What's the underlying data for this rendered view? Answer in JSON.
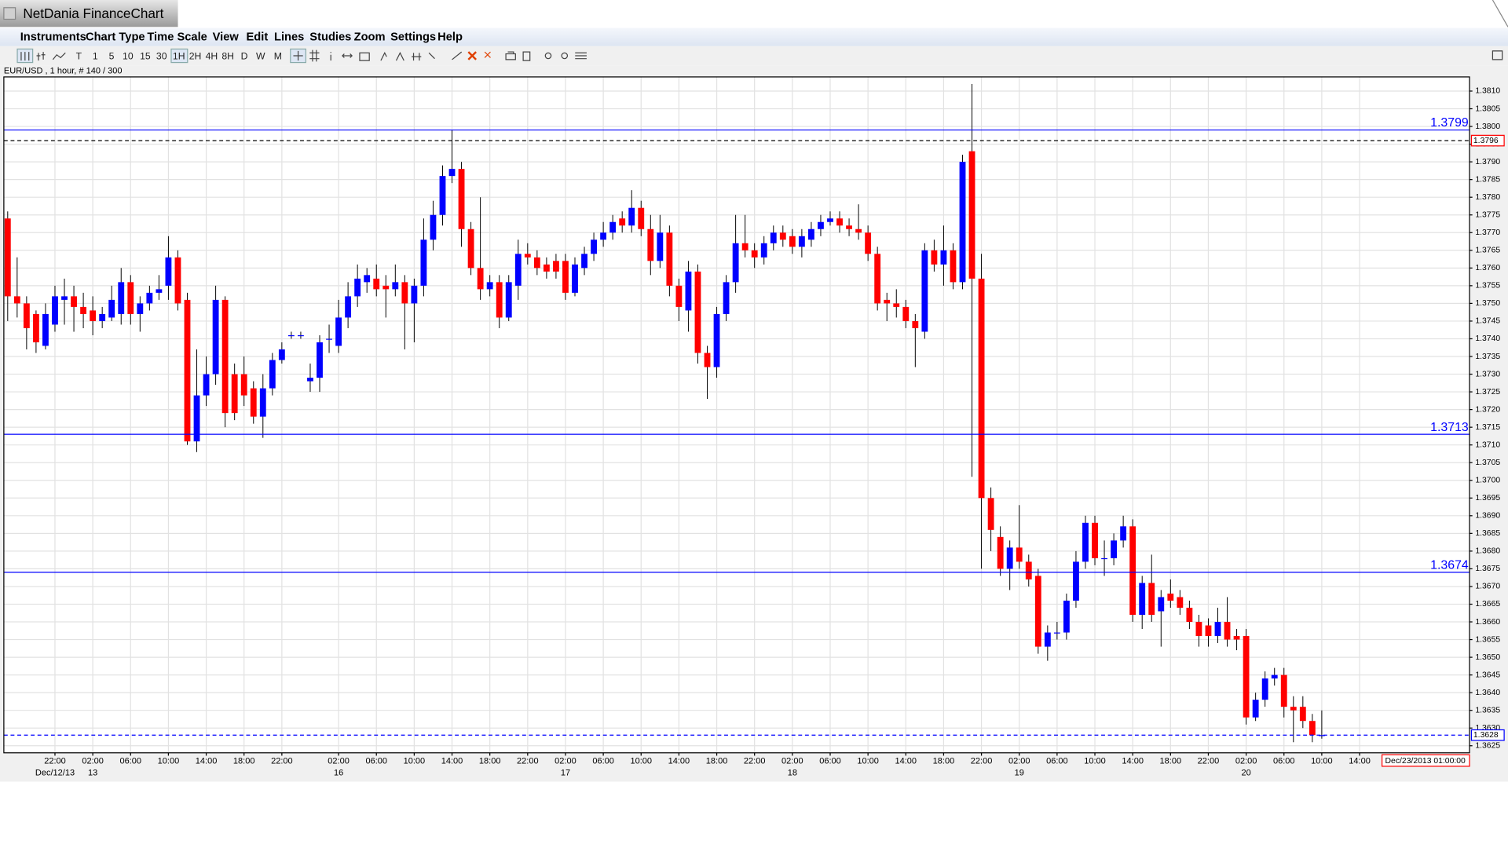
{
  "window": {
    "title": "NetDania FinanceChart"
  },
  "menu": [
    "Instruments",
    "Chart Type",
    "Time Scale",
    "View",
    "Edit",
    "Lines",
    "Studies",
    "Zoom",
    "Settings",
    "Help"
  ],
  "toolbar": [
    "T",
    "1",
    "5",
    "10",
    "15",
    "30",
    "1H",
    "2H",
    "4H",
    "8H",
    "D",
    "W",
    "M"
  ],
  "chart_data": {
    "type": "candlestick",
    "title": "EUR/USD , 1 hour, # 140 / 300",
    "categories": [
      null,
      null,
      null,
      null,
      null,
      "22:00",
      null,
      null,
      null,
      "02:00",
      null,
      null,
      null,
      "06:00",
      null,
      null,
      null,
      "10:00",
      null,
      null,
      null,
      "14:00",
      null,
      null,
      null,
      "18:00",
      null,
      null,
      null,
      "22:00",
      null,
      null,
      null,
      null,
      null,
      "02:00",
      null,
      null,
      null,
      "06:00",
      null,
      null,
      null,
      "10:00",
      null,
      null,
      null,
      "14:00",
      null,
      null,
      null,
      "18:00",
      null,
      null,
      null,
      "22:00",
      null,
      null,
      null,
      "02:00",
      null,
      null,
      null,
      "06:00",
      null,
      null,
      null,
      "10:00",
      null,
      null,
      null,
      "14:00",
      null,
      null,
      null,
      "18:00",
      null,
      null,
      null,
      "22:00",
      null,
      null,
      null,
      "02:00",
      null,
      null,
      null,
      "06:00",
      null,
      null,
      null,
      "10:00",
      null,
      null,
      null,
      "14:00",
      null,
      null,
      null,
      "18:00",
      null,
      null,
      null,
      "22:00",
      null,
      null,
      null,
      "02:00",
      null,
      null,
      null,
      "06:00",
      null,
      null,
      null,
      "10:00",
      null,
      null,
      null,
      "14:00",
      null,
      null,
      null,
      "18:00",
      null,
      null,
      null,
      "22:00",
      null,
      null,
      null,
      "02:00",
      null,
      null,
      null,
      "06:00",
      null,
      null,
      null,
      "10:00",
      null,
      null,
      null,
      "14:00",
      null,
      null,
      null,
      null,
      null,
      null,
      null,
      null,
      null,
      null
    ],
    "dates": [
      null,
      null,
      null,
      null,
      null,
      "Dec/12/13",
      null,
      null,
      null,
      "13",
      null,
      null,
      null,
      null,
      null,
      null,
      null,
      null,
      null,
      null,
      null,
      null,
      null,
      null,
      null,
      null,
      null,
      null,
      null,
      null,
      null,
      null,
      null,
      null,
      null,
      "16",
      null,
      null,
      null,
      null,
      null,
      null,
      null,
      null,
      null,
      null,
      null,
      null,
      null,
      null,
      null,
      null,
      null,
      null,
      null,
      null,
      null,
      null,
      null,
      "17",
      null,
      null,
      null,
      null,
      null,
      null,
      null,
      null,
      null,
      null,
      null,
      null,
      null,
      null,
      null,
      null,
      null,
      null,
      null,
      null,
      null,
      null,
      null,
      "18",
      null,
      null,
      null,
      null,
      null,
      null,
      null,
      null,
      null,
      null,
      null,
      null,
      null,
      null,
      null,
      null,
      null,
      null,
      null,
      null,
      null,
      null,
      null,
      "19",
      null,
      null,
      null,
      null,
      null,
      null,
      null,
      null,
      null,
      null,
      null,
      null,
      null,
      null,
      null,
      null,
      null,
      null,
      null,
      null,
      null,
      null,
      null,
      "20",
      null,
      null,
      null,
      null,
      null,
      null,
      null,
      null,
      null,
      null,
      null,
      null,
      null,
      null,
      null,
      null,
      null,
      null,
      null,
      null,
      null,
      null
    ],
    "open": [
      1.3774,
      1.3752,
      1.375,
      1.3747,
      1.3738,
      1.3744,
      1.3751,
      1.3752,
      1.3749,
      1.3748,
      1.3745,
      1.3746,
      1.3747,
      1.3756,
      1.3747,
      1.375,
      1.3753,
      1.3755,
      1.3763,
      1.3751,
      1.3711,
      1.3724,
      1.373,
      1.3751,
      1.373,
      1.373,
      1.3726,
      1.3718,
      1.3726,
      1.3734,
      1.3741,
      1.3741,
      1.3728,
      1.3729,
      1.374,
      1.3738,
      1.3746,
      1.3752,
      1.3756,
      1.3757,
      1.3755,
      1.3754,
      1.3756,
      1.375,
      1.3755,
      1.3768,
      1.3775,
      1.3786,
      1.3788,
      1.3771,
      1.376,
      1.3754,
      1.3756,
      1.3746,
      1.3755,
      1.3764,
      1.3763,
      1.3761,
      1.3762,
      1.3762,
      1.3753,
      1.376,
      1.3764,
      1.3768,
      1.377,
      1.3774,
      1.3772,
      1.3777,
      1.3771,
      1.3762,
      1.377,
      1.3755,
      1.3748,
      1.3759,
      1.3736,
      1.3732,
      1.3747,
      1.3756,
      1.3767,
      1.3765,
      1.3763,
      1.3767,
      1.377,
      1.3769,
      1.3766,
      1.3768,
      1.3771,
      1.3773,
      1.3774,
      1.3772,
      1.3771,
      1.377,
      1.3764,
      1.3751,
      1.375,
      1.3749,
      1.3745,
      1.3742,
      1.3765,
      1.3761,
      1.3765,
      1.3756,
      1.3793,
      1.3757,
      1.3695,
      1.3684,
      1.3675,
      1.3681,
      1.3677,
      1.3673,
      1.3653,
      1.3657,
      1.3657,
      1.3666,
      1.3677,
      1.3688,
      1.3678,
      1.3678,
      1.3683,
      1.3687,
      1.3662,
      1.3671,
      1.3663,
      1.3668,
      1.3667,
      1.3664,
      1.366,
      1.3659,
      1.3656,
      1.366,
      1.3656,
      1.3656,
      1.3633,
      1.3638,
      1.3644,
      1.3645,
      1.3636,
      1.3636,
      1.3632,
      1.3628,
      null,
      null,
      null,
      null,
      null,
      null,
      null,
      null,
      null,
      null,
      null,
      null,
      null,
      null
    ],
    "high": [
      1.3776,
      1.3763,
      1.3752,
      1.3748,
      1.375,
      1.3755,
      1.3757,
      1.3755,
      1.3753,
      1.3752,
      1.3749,
      1.3755,
      1.376,
      1.3758,
      1.3752,
      1.3755,
      1.3758,
      1.3769,
      1.3765,
      1.3753,
      1.3737,
      1.3735,
      1.3755,
      1.3752,
      1.3733,
      1.3735,
      1.3728,
      1.373,
      1.3736,
      1.3739,
      1.3742,
      1.3742,
      1.3733,
      1.3741,
      1.3744,
      1.3751,
      1.3756,
      1.3761,
      1.376,
      1.3761,
      1.3758,
      1.3761,
      1.3758,
      1.3757,
      1.3774,
      1.3779,
      1.3789,
      1.3799,
      1.379,
      1.3773,
      1.378,
      1.3758,
      1.3758,
      1.3758,
      1.3768,
      1.3767,
      1.3765,
      1.3763,
      1.3764,
      1.3764,
      1.3763,
      1.3766,
      1.377,
      1.3773,
      1.3775,
      1.3776,
      1.3782,
      1.3779,
      1.3775,
      1.3775,
      1.3772,
      1.3757,
      1.3762,
      1.3761,
      1.3738,
      1.3749,
      1.3758,
      1.3775,
      1.3775,
      1.3767,
      1.3769,
      1.3772,
      1.3772,
      1.3771,
      1.3771,
      1.3773,
      1.3775,
      1.3776,
      1.3776,
      1.3774,
      1.3778,
      1.3772,
      1.3766,
      1.3753,
      1.3754,
      1.3751,
      1.3747,
      1.3767,
      1.3768,
      1.3772,
      1.3767,
      1.3792,
      1.3812,
      1.3764,
      1.3698,
      1.3687,
      1.3683,
      1.3693,
      1.3679,
      1.3675,
      1.3659,
      1.366,
      1.3668,
      1.368,
      1.369,
      1.369,
      1.3683,
      1.3685,
      1.369,
      1.3689,
      1.3673,
      1.3679,
      1.3669,
      1.3672,
      1.3669,
      1.3666,
      1.3662,
      1.3661,
      1.3664,
      1.3667,
      1.3658,
      1.3658,
      1.364,
      1.3646,
      1.3647,
      1.3647,
      1.3639,
      1.3639,
      1.3634,
      1.3635,
      null,
      null,
      null,
      null,
      null,
      null,
      null,
      null,
      null,
      null,
      null,
      null,
      null,
      null
    ],
    "low": [
      1.3745,
      1.3746,
      1.3737,
      1.3736,
      1.3737,
      1.3742,
      1.3744,
      1.3742,
      1.3743,
      1.3741,
      1.3743,
      1.3745,
      1.3744,
      1.3744,
      1.3742,
      1.3748,
      1.3751,
      1.3751,
      1.3748,
      1.371,
      1.3708,
      1.3721,
      1.3727,
      1.3715,
      1.3717,
      1.3721,
      1.3716,
      1.3712,
      1.3724,
      1.3733,
      1.374,
      1.374,
      1.3725,
      1.3725,
      1.3736,
      1.3736,
      1.3743,
      1.3749,
      1.3753,
      1.3752,
      1.3746,
      1.3752,
      1.3737,
      1.3739,
      1.3752,
      1.3765,
      1.3772,
      1.3784,
      1.3766,
      1.3758,
      1.3751,
      1.3752,
      1.3743,
      1.3745,
      1.3751,
      1.3761,
      1.3758,
      1.3757,
      1.3757,
      1.3751,
      1.3752,
      1.3758,
      1.3762,
      1.3766,
      1.3768,
      1.377,
      1.377,
      1.3769,
      1.3758,
      1.376,
      1.3752,
      1.3745,
      1.3742,
      1.3733,
      1.3723,
      1.3729,
      1.3745,
      1.3753,
      1.3763,
      1.376,
      1.3761,
      1.3765,
      1.3766,
      1.3764,
      1.3763,
      1.3766,
      1.3769,
      1.3772,
      1.377,
      1.3769,
      1.3768,
      1.3762,
      1.3748,
      1.3745,
      1.3746,
      1.3743,
      1.3732,
      1.374,
      1.3759,
      1.3755,
      1.3754,
      1.3754,
      1.3701,
      1.3675,
      1.368,
      1.3673,
      1.3669,
      1.3675,
      1.367,
      1.3651,
      1.3649,
      1.3655,
      1.3655,
      1.3664,
      1.3675,
      1.3676,
      1.3673,
      1.3676,
      1.3681,
      1.366,
      1.3658,
      1.366,
      1.3653,
      1.3664,
      1.3662,
      1.3658,
      1.3653,
      1.3653,
      1.3654,
      1.3653,
      1.3652,
      1.3631,
      1.3632,
      1.3636,
      1.3642,
      1.3633,
      1.3626,
      1.363,
      1.3626,
      1.3627,
      null,
      null,
      null,
      null,
      null,
      null,
      null,
      null,
      null,
      null,
      null,
      null,
      null,
      null
    ],
    "close": [
      1.3752,
      1.375,
      1.3743,
      1.3739,
      1.3747,
      1.3752,
      1.3752,
      1.3749,
      1.3747,
      1.3745,
      1.3747,
      1.3751,
      1.3756,
      1.3747,
      1.375,
      1.3753,
      1.3754,
      1.3763,
      1.375,
      1.3711,
      1.3724,
      1.373,
      1.3751,
      1.3719,
      1.3719,
      1.3724,
      1.3718,
      1.3726,
      1.3734,
      1.3737,
      1.3741,
      1.3741,
      1.3729,
      1.3739,
      1.374,
      1.3746,
      1.3752,
      1.3757,
      1.3758,
      1.3754,
      1.3754,
      1.3756,
      1.375,
      1.3755,
      1.3768,
      1.3775,
      1.3786,
      1.3788,
      1.3771,
      1.376,
      1.3754,
      1.3756,
      1.3746,
      1.3756,
      1.3764,
      1.3763,
      1.376,
      1.3759,
      1.3759,
      1.3753,
      1.3761,
      1.3764,
      1.3768,
      1.377,
      1.3773,
      1.3772,
      1.3777,
      1.3771,
      1.3762,
      1.377,
      1.3755,
      1.3749,
      1.3759,
      1.3736,
      1.3732,
      1.3747,
      1.3756,
      1.3767,
      1.3765,
      1.3763,
      1.3767,
      1.377,
      1.3768,
      1.3766,
      1.3769,
      1.3771,
      1.3773,
      1.3774,
      1.3772,
      1.3771,
      1.377,
      1.3764,
      1.375,
      1.375,
      1.3749,
      1.3745,
      1.3743,
      1.3765,
      1.3761,
      1.3765,
      1.3756,
      1.379,
      1.3757,
      1.3695,
      1.3686,
      1.3675,
      1.3681,
      1.3677,
      1.3672,
      1.3653,
      1.3657,
      1.3657,
      1.3666,
      1.3677,
      1.3688,
      1.3678,
      1.3678,
      1.3683,
      1.3687,
      1.3662,
      1.3671,
      1.3662,
      1.3667,
      1.3666,
      1.3664,
      1.366,
      1.3656,
      1.3656,
      1.366,
      1.3655,
      1.3655,
      1.3633,
      1.3638,
      1.3644,
      1.3645,
      1.3636,
      1.3635,
      1.3632,
      1.3628,
      1.3628,
      null,
      null,
      null,
      null,
      null,
      null,
      null,
      null,
      null,
      null,
      null,
      null,
      null,
      null
    ],
    "up_color": "#0000ff",
    "down_color": "#ff0000",
    "ylim": [
      1.3623,
      1.3814
    ],
    "yticks": [
      1.3625,
      {
        "value": 1.363,
        "label": "1.3630"
      },
      1.3635,
      {
        "value": 1.364,
        "label": "1.3640"
      },
      1.3645,
      {
        "value": 1.365,
        "label": "1.3650"
      },
      1.3655,
      {
        "value": 1.366,
        "label": "1.3660"
      },
      1.3665,
      {
        "value": 1.367,
        "label": "1.3670"
      },
      1.3675,
      {
        "value": 1.368,
        "label": "1.3680"
      },
      1.3685,
      {
        "value": 1.369,
        "label": "1.3690"
      },
      1.3695,
      {
        "value": 1.37,
        "label": "1.3700"
      },
      1.3705,
      {
        "value": 1.371,
        "label": "1.3710"
      },
      1.3715,
      {
        "value": 1.372,
        "label": "1.3720"
      },
      1.3725,
      {
        "value": 1.373,
        "label": "1.3730"
      },
      1.3735,
      {
        "value": 1.374,
        "label": "1.3740"
      },
      1.3745,
      {
        "value": 1.375,
        "label": "1.3750"
      },
      1.3755,
      {
        "value": 1.376,
        "label": "1.3760"
      },
      1.3765,
      {
        "value": 1.377,
        "label": "1.3770"
      },
      1.3775,
      {
        "value": 1.378,
        "label": "1.3780"
      },
      1.3785,
      {
        "value": 1.379,
        "label": "1.3790"
      },
      1.3795,
      {
        "value": 1.38,
        "label": "1.3800"
      },
      1.3805,
      {
        "value": 1.381,
        "label": "1.3810"
      }
    ],
    "grid": true,
    "levels": [
      1.3799,
      1.3713,
      1.3674
    ],
    "level_color": "#0000ff",
    "bid_marker": 1.3796,
    "last_price": 1.3628,
    "cursor_time": "Dec/23/2013 01:00:00"
  }
}
